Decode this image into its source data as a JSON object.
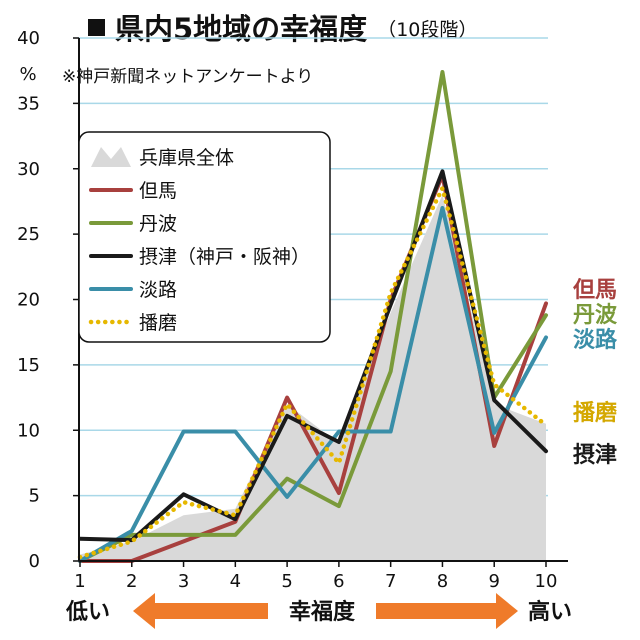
{
  "title": {
    "main": "県内5地域の幸福度",
    "sub": "（10段階）"
  },
  "note": "※神戸新聞ネットアンケートより",
  "chart_data": {
    "type": "line",
    "title": "県内5地域の幸福度（10段階）",
    "xlabel": "幸福度",
    "x_low_label": "低い",
    "x_high_label": "高い",
    "ylabel": "%",
    "x": [
      1,
      2,
      3,
      4,
      5,
      6,
      7,
      8,
      9,
      10
    ],
    "xlim": [
      1,
      10
    ],
    "ylim": [
      0,
      40
    ],
    "yticks": [
      0,
      5,
      10,
      15,
      20,
      25,
      30,
      35,
      40
    ],
    "grid": true,
    "legend_position": "top-left",
    "series": [
      {
        "name": "兵庫県全体",
        "style": "area",
        "color": "#d9d9d9",
        "values": [
          0.5,
          1.5,
          3.5,
          4,
          12,
          9,
          19,
          28,
          12,
          10.5
        ]
      },
      {
        "name": "但馬",
        "style": "line",
        "color": "#a8403e",
        "values": [
          0,
          0,
          1.5,
          3,
          12.5,
          5.2,
          20,
          29.5,
          8.8,
          19.7
        ]
      },
      {
        "name": "丹波",
        "style": "line",
        "color": "#7a9a3a",
        "values": [
          0,
          2,
          2,
          2,
          6.3,
          4.2,
          14.5,
          37.4,
          12.5,
          18.8
        ]
      },
      {
        "name": "摂津（神戸・阪神）",
        "style": "line",
        "color": "#1a1a1a",
        "values": [
          1.7,
          1.6,
          5.1,
          3.2,
          11.1,
          9.1,
          19.6,
          29.8,
          12.3,
          8.4
        ]
      },
      {
        "name": "淡路",
        "style": "line",
        "color": "#3a8ea8",
        "values": [
          0,
          2.3,
          9.9,
          9.9,
          4.9,
          9.9,
          9.9,
          27,
          9.8,
          17.1
        ]
      },
      {
        "name": "播磨",
        "style": "dotted",
        "color": "#e6b800",
        "values": [
          0.3,
          1.5,
          4.5,
          3.5,
          12,
          7.5,
          20.5,
          28.5,
          13.5,
          10.4
        ]
      }
    ],
    "end_labels": [
      {
        "text": "但馬",
        "color": "#a8403e"
      },
      {
        "text": "丹波",
        "color": "#7a9a3a"
      },
      {
        "text": "淡路",
        "color": "#3a8ea8"
      },
      {
        "text": "播磨",
        "color": "#d4a800"
      },
      {
        "text": "摂津",
        "color": "#1a1a1a"
      }
    ]
  },
  "colors": {
    "grid": "#a9d8e8",
    "arrow": "#ef7b2a"
  }
}
